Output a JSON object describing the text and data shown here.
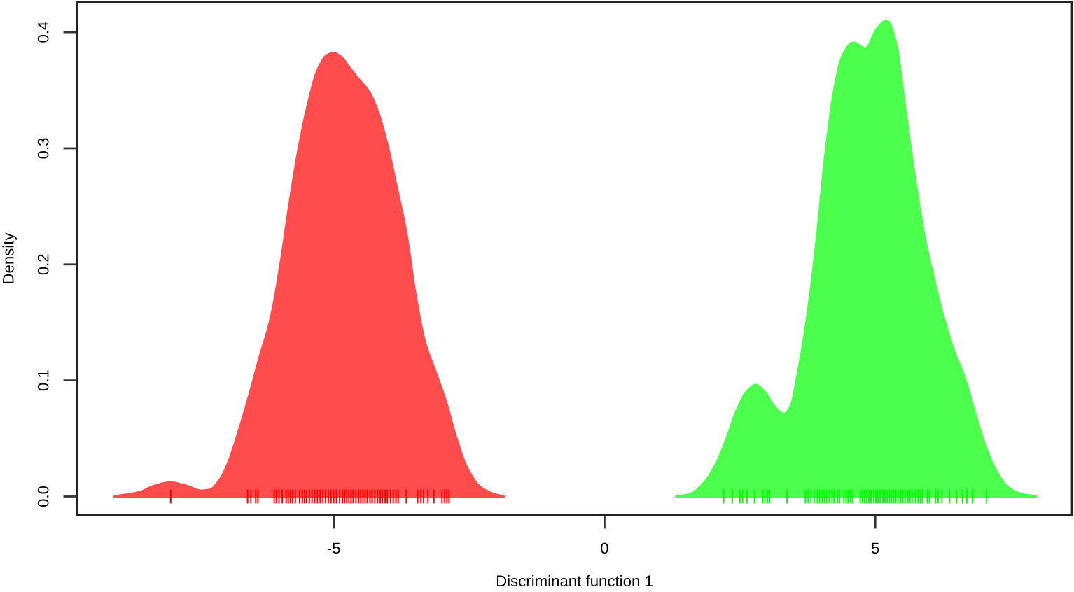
{
  "chart_data": {
    "type": "area",
    "xlabel": "Discriminant function 1",
    "ylabel": "Density",
    "xlim": [
      -9.74,
      8.63
    ],
    "ylim": [
      -0.016,
      0.426
    ],
    "xticks": [
      -5,
      0,
      5
    ],
    "yticks": [
      {
        "value": 0,
        "label": "0.0"
      },
      0.1,
      0.2,
      0.3,
      0.4
    ],
    "series": [
      {
        "color": "#ff4d4d",
        "x": [
          -9.05,
          -8.57,
          -8.32,
          -8.02,
          -7.71,
          -7.45,
          -7.28,
          -7.11,
          -6.94,
          -6.77,
          -6.59,
          -6.38,
          -6.16,
          -5.99,
          -5.82,
          -5.65,
          -5.47,
          -5.3,
          -5.13,
          -5.0,
          -4.87,
          -4.7,
          -4.53,
          -4.35,
          -4.18,
          -4.01,
          -3.84,
          -3.66,
          -3.49,
          -3.32,
          -3.11,
          -2.93,
          -2.76,
          -2.55,
          -2.29,
          -2.03,
          -1.86
        ],
        "values": [
          0,
          0.004,
          0.009,
          0.012,
          0.009,
          0.005,
          0.006,
          0.014,
          0.03,
          0.054,
          0.082,
          0.118,
          0.154,
          0.198,
          0.251,
          0.299,
          0.339,
          0.367,
          0.38,
          0.382,
          0.379,
          0.369,
          0.359,
          0.349,
          0.331,
          0.303,
          0.267,
          0.227,
          0.174,
          0.134,
          0.106,
          0.082,
          0.054,
          0.026,
          0.008,
          0.002,
          0
        ]
      },
      {
        "color": "#4dff4d",
        "x": [
          1.32,
          1.58,
          1.84,
          2.1,
          2.27,
          2.44,
          2.62,
          2.79,
          2.96,
          3.13,
          3.31,
          3.44,
          3.57,
          3.74,
          3.91,
          4.08,
          4.26,
          4.39,
          4.59,
          4.82,
          5.03,
          5.21,
          5.38,
          5.55,
          5.73,
          5.9,
          6.07,
          6.24,
          6.42,
          6.68,
          6.93,
          7.19,
          7.45,
          7.71,
          7.97
        ],
        "values": [
          0,
          0.002,
          0.012,
          0.032,
          0.052,
          0.074,
          0.09,
          0.096,
          0.09,
          0.078,
          0.071,
          0.078,
          0.106,
          0.154,
          0.218,
          0.295,
          0.355,
          0.379,
          0.391,
          0.386,
          0.403,
          0.41,
          0.391,
          0.335,
          0.275,
          0.226,
          0.19,
          0.158,
          0.13,
          0.098,
          0.058,
          0.026,
          0.008,
          0.002,
          0
        ]
      },
      {
        "type": "bar",
        "color": "#ff0000",
        "x": [
          -8.01,
          -6.59,
          -6.53,
          -6.44,
          -6.4,
          -6.1,
          -6.06,
          -6.01,
          -5.95,
          -5.88,
          -5.84,
          -5.8,
          -5.76,
          -5.71,
          -5.63,
          -5.58,
          -5.54,
          -5.5,
          -5.45,
          -5.4,
          -5.35,
          -5.3,
          -5.25,
          -5.2,
          -5.15,
          -5.1,
          -5.05,
          -5.0,
          -4.95,
          -4.89,
          -4.84,
          -4.8,
          -4.76,
          -4.72,
          -4.68,
          -4.64,
          -4.59,
          -4.54,
          -4.5,
          -4.46,
          -4.42,
          -4.38,
          -4.33,
          -4.29,
          -4.24,
          -4.19,
          -4.14,
          -4.1,
          -4.05,
          -4.01,
          -3.95,
          -3.9,
          -3.85,
          -3.81,
          -3.66,
          -3.45,
          -3.39,
          -3.34,
          -3.26,
          -3.15,
          -3.0,
          -2.95,
          -2.91,
          -2.87
        ],
        "base": [
          -0.006,
          -0.006,
          -0.006,
          -0.006,
          -0.006,
          -0.006,
          -0.006,
          -0.006,
          -0.006,
          -0.006,
          -0.006,
          -0.006,
          -0.006,
          -0.006,
          -0.006,
          -0.006,
          -0.006,
          -0.006,
          -0.006,
          -0.006,
          -0.006,
          -0.006,
          -0.006,
          -0.006,
          -0.006,
          -0.006,
          -0.006,
          -0.006,
          -0.006,
          -0.006,
          -0.006,
          -0.006,
          -0.006,
          -0.006,
          -0.006,
          -0.006,
          -0.006,
          -0.006,
          -0.006,
          -0.006,
          -0.006,
          -0.006,
          -0.006,
          -0.006,
          -0.006,
          -0.006,
          -0.006,
          -0.006,
          -0.006,
          -0.006,
          -0.006,
          -0.006,
          -0.006,
          -0.006,
          -0.006,
          -0.006,
          -0.006,
          -0.006,
          -0.006,
          -0.006,
          -0.006,
          -0.006,
          -0.006,
          -0.006
        ],
        "values": [
          0.012,
          0.012,
          0.012,
          0.012,
          0.012,
          0.012,
          0.012,
          0.012,
          0.012,
          0.012,
          0.012,
          0.012,
          0.012,
          0.012,
          0.012,
          0.012,
          0.012,
          0.012,
          0.012,
          0.012,
          0.012,
          0.012,
          0.012,
          0.012,
          0.012,
          0.012,
          0.012,
          0.012,
          0.012,
          0.012,
          0.012,
          0.012,
          0.012,
          0.012,
          0.012,
          0.012,
          0.012,
          0.012,
          0.012,
          0.012,
          0.012,
          0.012,
          0.012,
          0.012,
          0.012,
          0.012,
          0.012,
          0.012,
          0.012,
          0.012,
          0.012,
          0.012,
          0.012,
          0.012,
          0.012,
          0.012,
          0.012,
          0.012,
          0.012,
          0.012,
          0.012,
          0.012,
          0.012,
          0.012
        ]
      },
      {
        "type": "bar",
        "color": "#00ff00",
        "x": [
          2.2,
          2.36,
          2.5,
          2.55,
          2.63,
          2.77,
          2.92,
          2.96,
          3.01,
          3.05,
          3.37,
          3.71,
          3.76,
          3.81,
          3.87,
          3.93,
          3.97,
          4.02,
          4.06,
          4.1,
          4.15,
          4.2,
          4.24,
          4.3,
          4.34,
          4.42,
          4.46,
          4.5,
          4.54,
          4.58,
          4.72,
          4.76,
          4.8,
          4.84,
          4.88,
          4.92,
          4.97,
          5.01,
          5.05,
          5.09,
          5.14,
          5.18,
          5.22,
          5.26,
          5.3,
          5.34,
          5.38,
          5.42,
          5.47,
          5.51,
          5.55,
          5.6,
          5.64,
          5.68,
          5.74,
          5.79,
          5.83,
          5.87,
          5.96,
          6.0,
          6.11,
          6.16,
          6.23,
          6.37,
          6.5,
          6.61,
          6.69,
          6.8,
          7.05
        ],
        "base": [
          -0.006,
          -0.006,
          -0.006,
          -0.006,
          -0.006,
          -0.006,
          -0.006,
          -0.006,
          -0.006,
          -0.006,
          -0.006,
          -0.006,
          -0.006,
          -0.006,
          -0.006,
          -0.006,
          -0.006,
          -0.006,
          -0.006,
          -0.006,
          -0.006,
          -0.006,
          -0.006,
          -0.006,
          -0.006,
          -0.006,
          -0.006,
          -0.006,
          -0.006,
          -0.006,
          -0.006,
          -0.006,
          -0.006,
          -0.006,
          -0.006,
          -0.006,
          -0.006,
          -0.006,
          -0.006,
          -0.006,
          -0.006,
          -0.006,
          -0.006,
          -0.006,
          -0.006,
          -0.006,
          -0.006,
          -0.006,
          -0.006,
          -0.006,
          -0.006,
          -0.006,
          -0.006,
          -0.006,
          -0.006,
          -0.006,
          -0.006,
          -0.006,
          -0.006,
          -0.006,
          -0.006,
          -0.006,
          -0.006,
          -0.006,
          -0.006,
          -0.006,
          -0.006,
          -0.006,
          -0.006
        ],
        "values": [
          0.012,
          0.012,
          0.012,
          0.012,
          0.012,
          0.012,
          0.012,
          0.012,
          0.012,
          0.012,
          0.012,
          0.012,
          0.012,
          0.012,
          0.012,
          0.012,
          0.012,
          0.012,
          0.012,
          0.012,
          0.012,
          0.012,
          0.012,
          0.012,
          0.012,
          0.012,
          0.012,
          0.012,
          0.012,
          0.012,
          0.012,
          0.012,
          0.012,
          0.012,
          0.012,
          0.012,
          0.012,
          0.012,
          0.012,
          0.012,
          0.012,
          0.012,
          0.012,
          0.012,
          0.012,
          0.012,
          0.012,
          0.012,
          0.012,
          0.012,
          0.012,
          0.012,
          0.012,
          0.012,
          0.012,
          0.012,
          0.012,
          0.012,
          0.012,
          0.012,
          0.012,
          0.012,
          0.012,
          0.012,
          0.012,
          0.012,
          0.012,
          0.012,
          0.012
        ]
      }
    ]
  }
}
